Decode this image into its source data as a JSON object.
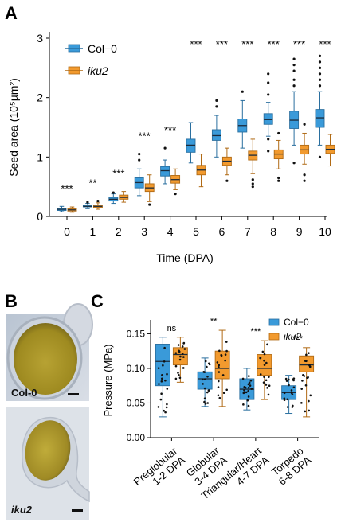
{
  "panel_labels": {
    "a": "A",
    "b": "B",
    "c": "C"
  },
  "colors": {
    "col0": "#3a9ad9",
    "iku2": "#f29a2e"
  },
  "chart_data": [
    {
      "type": "box",
      "panel": "A",
      "xlabel": "Time (DPA)",
      "ylabel": "Seed area (10⁵µm²)",
      "ylim": [
        0,
        3
      ],
      "yticks": [
        0,
        1,
        2,
        3
      ],
      "categories": [
        "0",
        "1",
        "2",
        "3",
        "4",
        "5",
        "6",
        "7",
        "8",
        "9",
        "10"
      ],
      "legend": {
        "placement": "top-left",
        "entries": [
          "Col−0",
          "iku2"
        ]
      },
      "significance": [
        "***",
        "**",
        "***",
        "***",
        "***",
        "***",
        "***",
        "***",
        "***",
        "***",
        "***"
      ],
      "series": [
        {
          "name": "Col−0",
          "color": "#3a9ad9",
          "boxes": [
            {
              "min": 0.08,
              "q1": 0.1,
              "median": 0.12,
              "q3": 0.14,
              "max": 0.17,
              "outliers": []
            },
            {
              "min": 0.13,
              "q1": 0.16,
              "median": 0.17,
              "q3": 0.19,
              "max": 0.22,
              "outliers": [
                0.24
              ]
            },
            {
              "min": 0.22,
              "q1": 0.26,
              "median": 0.29,
              "q3": 0.32,
              "max": 0.38,
              "outliers": [
                0.4
              ]
            },
            {
              "min": 0.35,
              "q1": 0.48,
              "median": 0.57,
              "q3": 0.65,
              "max": 0.8,
              "outliers": [
                0.95,
                1.05
              ]
            },
            {
              "min": 0.55,
              "q1": 0.68,
              "median": 0.77,
              "q3": 0.84,
              "max": 0.95,
              "outliers": [
                1.15
              ]
            },
            {
              "min": 0.9,
              "q1": 1.08,
              "median": 1.2,
              "q3": 1.3,
              "max": 1.58,
              "outliers": []
            },
            {
              "min": 1.0,
              "q1": 1.28,
              "median": 1.36,
              "q3": 1.46,
              "max": 1.7,
              "outliers": [
                1.85,
                1.95
              ]
            },
            {
              "min": 1.15,
              "q1": 1.42,
              "median": 1.53,
              "q3": 1.64,
              "max": 1.95,
              "outliers": [
                2.1
              ]
            },
            {
              "min": 1.35,
              "q1": 1.55,
              "median": 1.63,
              "q3": 1.73,
              "max": 1.92,
              "outliers": [
                1.1,
                1.3,
                2.05,
                2.25,
                2.4
              ]
            },
            {
              "min": 1.2,
              "q1": 1.48,
              "median": 1.62,
              "q3": 1.77,
              "max": 2.1,
              "outliers": [
                0.9,
                2.2,
                2.3,
                2.45,
                2.55,
                2.65
              ]
            },
            {
              "min": 1.2,
              "q1": 1.5,
              "median": 1.66,
              "q3": 1.8,
              "max": 2.1,
              "outliers": [
                1.0,
                2.2,
                2.3,
                2.4,
                2.5,
                2.6,
                2.7
              ]
            }
          ]
        },
        {
          "name": "iku2",
          "color": "#f29a2e",
          "boxes": [
            {
              "min": 0.07,
              "q1": 0.09,
              "median": 0.11,
              "q3": 0.13,
              "max": 0.16,
              "outliers": []
            },
            {
              "min": 0.12,
              "q1": 0.15,
              "median": 0.17,
              "q3": 0.19,
              "max": 0.23,
              "outliers": [
                0.26
              ]
            },
            {
              "min": 0.24,
              "q1": 0.29,
              "median": 0.32,
              "q3": 0.36,
              "max": 0.42,
              "outliers": []
            },
            {
              "min": 0.25,
              "q1": 0.42,
              "median": 0.48,
              "q3": 0.55,
              "max": 0.7,
              "outliers": [
                0.2
              ]
            },
            {
              "min": 0.45,
              "q1": 0.56,
              "median": 0.62,
              "q3": 0.69,
              "max": 0.8,
              "outliers": [
                0.38
              ]
            },
            {
              "min": 0.5,
              "q1": 0.7,
              "median": 0.78,
              "q3": 0.86,
              "max": 1.05,
              "outliers": []
            },
            {
              "min": 0.7,
              "q1": 0.86,
              "median": 0.93,
              "q3": 1.0,
              "max": 1.15,
              "outliers": [
                0.6
              ]
            },
            {
              "min": 0.72,
              "q1": 0.95,
              "median": 1.03,
              "q3": 1.1,
              "max": 1.3,
              "outliers": [
                0.5,
                0.55,
                0.62
              ]
            },
            {
              "min": 0.8,
              "q1": 0.97,
              "median": 1.05,
              "q3": 1.12,
              "max": 1.28,
              "outliers": [
                0.6,
                0.65,
                1.4
              ]
            },
            {
              "min": 0.88,
              "q1": 1.05,
              "median": 1.12,
              "q3": 1.2,
              "max": 1.4,
              "outliers": [
                0.6,
                0.7,
                1.55
              ]
            },
            {
              "min": 0.85,
              "q1": 1.06,
              "median": 1.13,
              "q3": 1.2,
              "max": 1.38,
              "outliers": []
            }
          ]
        }
      ]
    },
    {
      "type": "box",
      "panel": "C",
      "ylabel": "Pressure (MPa)",
      "ylim": [
        0,
        0.17
      ],
      "yticks": [
        "0.00",
        "0.05",
        "0.10",
        "0.15"
      ],
      "ytick_values": [
        0,
        0.05,
        0.1,
        0.15
      ],
      "categories": [
        [
          "Preglobular",
          "1-2 DPA"
        ],
        [
          "Globular",
          "3-4 DPA"
        ],
        [
          "Triangular/Heart",
          "4-7 DPA"
        ],
        [
          "Torpedo",
          "6-8 DPA"
        ]
      ],
      "legend": {
        "placement": "top-right",
        "entries": [
          "Col−0",
          "iku2"
        ]
      },
      "significance": [
        "ns",
        "**",
        "***",
        "***"
      ],
      "series": [
        {
          "name": "Col−0",
          "color": "#3a9ad9",
          "boxes": [
            {
              "min": 0.03,
              "q1": 0.075,
              "median": 0.11,
              "q3": 0.135,
              "max": 0.145
            },
            {
              "min": 0.045,
              "q1": 0.07,
              "median": 0.085,
              "q3": 0.095,
              "max": 0.115
            },
            {
              "min": 0.04,
              "q1": 0.055,
              "median": 0.07,
              "q3": 0.085,
              "max": 0.1
            },
            {
              "min": 0.035,
              "q1": 0.055,
              "median": 0.065,
              "q3": 0.075,
              "max": 0.09
            }
          ]
        },
        {
          "name": "iku2",
          "color": "#f29a2e",
          "boxes": [
            {
              "min": 0.08,
              "q1": 0.105,
              "median": 0.12,
              "q3": 0.13,
              "max": 0.145
            },
            {
              "min": 0.045,
              "q1": 0.085,
              "median": 0.1,
              "q3": 0.125,
              "max": 0.155
            },
            {
              "min": 0.055,
              "q1": 0.09,
              "median": 0.1,
              "q3": 0.12,
              "max": 0.14
            },
            {
              "min": 0.03,
              "q1": 0.095,
              "median": 0.105,
              "q3": 0.118,
              "max": 0.13
            }
          ]
        }
      ]
    }
  ],
  "micrographs": [
    {
      "caption": "Col-0"
    },
    {
      "caption": "iku2"
    }
  ]
}
